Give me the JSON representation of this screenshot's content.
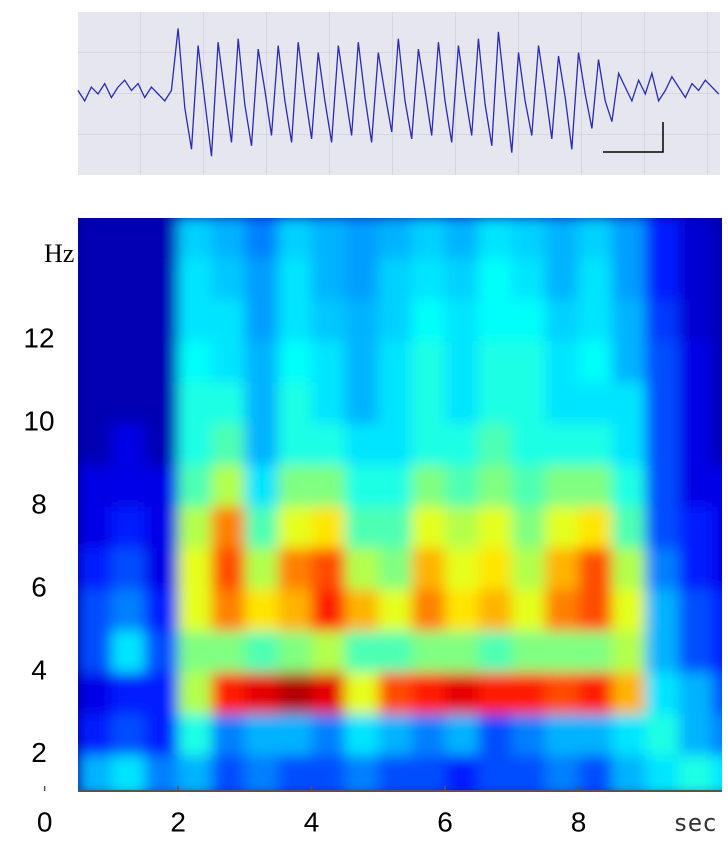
{
  "chart_data": [
    {
      "type": "line",
      "color": "#2a2ab8",
      "xlim": [
        0.5,
        10.15
      ],
      "ylim": [
        -1.1,
        1.1
      ],
      "x": [
        0.5,
        0.6,
        0.7,
        0.8,
        0.9,
        1.0,
        1.1,
        1.2,
        1.3,
        1.4,
        1.5,
        1.6,
        1.7,
        1.8,
        1.9,
        2.0,
        2.1,
        2.2,
        2.3,
        2.4,
        2.5,
        2.6,
        2.7,
        2.8,
        2.9,
        3.0,
        3.1,
        3.2,
        3.3,
        3.4,
        3.5,
        3.6,
        3.7,
        3.8,
        3.9,
        4.0,
        4.1,
        4.2,
        4.3,
        4.4,
        4.5,
        4.6,
        4.7,
        4.8,
        4.9,
        5.0,
        5.1,
        5.2,
        5.3,
        5.4,
        5.5,
        5.6,
        5.7,
        5.8,
        5.9,
        6.0,
        6.1,
        6.2,
        6.3,
        6.4,
        6.5,
        6.6,
        6.7,
        6.8,
        6.9,
        7.0,
        7.1,
        7.2,
        7.3,
        7.4,
        7.5,
        7.6,
        7.7,
        7.8,
        7.9,
        8.0,
        8.1,
        8.2,
        8.3,
        8.4,
        8.5,
        8.6,
        8.7,
        8.8,
        8.9,
        9.0,
        9.1,
        9.2,
        9.3,
        9.4,
        9.5,
        9.6,
        9.7,
        9.8,
        9.9,
        10.0,
        10.1
      ],
      "values": [
        0.05,
        -0.1,
        0.1,
        0.0,
        0.15,
        -0.05,
        0.1,
        0.2,
        0.05,
        0.15,
        -0.05,
        0.1,
        0.0,
        -0.1,
        0.05,
        0.95,
        -0.2,
        -0.8,
        0.7,
        -0.1,
        -0.9,
        0.75,
        0.0,
        -0.7,
        0.8,
        -0.15,
        -0.75,
        0.65,
        0.05,
        -0.6,
        0.7,
        -0.1,
        -0.7,
        0.75,
        0.0,
        -0.65,
        0.6,
        -0.1,
        -0.7,
        0.7,
        0.05,
        -0.6,
        0.75,
        -0.05,
        -0.7,
        0.6,
        0.0,
        -0.55,
        0.8,
        -0.1,
        -0.65,
        0.65,
        0.05,
        -0.6,
        0.75,
        -0.1,
        -0.7,
        0.7,
        0.0,
        -0.6,
        0.8,
        -0.15,
        -0.75,
        0.9,
        0.0,
        -0.85,
        0.6,
        -0.1,
        -0.6,
        0.7,
        0.05,
        -0.65,
        0.55,
        -0.05,
        -0.8,
        0.6,
        0.0,
        -0.5,
        0.5,
        -0.1,
        -0.4,
        0.3,
        0.1,
        -0.1,
        0.2,
        0.0,
        0.3,
        -0.1,
        0.05,
        0.25,
        0.1,
        -0.05,
        0.15,
        0.05,
        0.2,
        0.1,
        0.0
      ]
    },
    {
      "type": "heatmap",
      "xlabel": "sec",
      "ylabel": "Hz",
      "xlim": [
        0.5,
        10.15
      ],
      "ylim": [
        1.15,
        14.95
      ],
      "xticks": [
        0,
        2,
        4,
        6,
        8
      ],
      "yticks": [
        2,
        4,
        6,
        8,
        10,
        12
      ],
      "x": [
        0.5,
        1.0,
        1.5,
        2.0,
        2.5,
        3.0,
        3.5,
        4.0,
        4.5,
        5.0,
        5.5,
        6.0,
        6.5,
        7.0,
        7.5,
        8.0,
        8.5,
        9.0,
        9.5,
        10.0,
        10.5
      ],
      "y": [
        1,
        2,
        3,
        4,
        5,
        6,
        7,
        8,
        9,
        10,
        11,
        12,
        13,
        14,
        15
      ],
      "z": [
        [
          0.3,
          0.35,
          0.25,
          0.3,
          0.2,
          0.25,
          0.2,
          0.2,
          0.25,
          0.2,
          0.2,
          0.15,
          0.2,
          0.2,
          0.25,
          0.2,
          0.3,
          0.35,
          0.4,
          0.35
        ],
        [
          0.15,
          0.2,
          0.15,
          0.4,
          0.25,
          0.3,
          0.3,
          0.25,
          0.35,
          0.3,
          0.25,
          0.3,
          0.2,
          0.25,
          0.3,
          0.3,
          0.35,
          0.4,
          0.3,
          0.25
        ],
        [
          0.1,
          0.15,
          0.15,
          0.55,
          0.85,
          0.9,
          0.95,
          0.9,
          0.6,
          0.8,
          0.85,
          0.9,
          0.85,
          0.85,
          0.8,
          0.85,
          0.7,
          0.35,
          0.3,
          0.2
        ],
        [
          0.2,
          0.35,
          0.2,
          0.5,
          0.5,
          0.45,
          0.5,
          0.55,
          0.45,
          0.45,
          0.5,
          0.5,
          0.45,
          0.5,
          0.5,
          0.5,
          0.55,
          0.3,
          0.2,
          0.15
        ],
        [
          0.2,
          0.25,
          0.15,
          0.6,
          0.75,
          0.65,
          0.7,
          0.85,
          0.7,
          0.6,
          0.75,
          0.65,
          0.7,
          0.6,
          0.75,
          0.8,
          0.6,
          0.3,
          0.2,
          0.15
        ],
        [
          0.15,
          0.2,
          0.1,
          0.6,
          0.8,
          0.55,
          0.75,
          0.8,
          0.55,
          0.5,
          0.7,
          0.6,
          0.65,
          0.55,
          0.7,
          0.8,
          0.55,
          0.25,
          0.15,
          0.1
        ],
        [
          0.1,
          0.15,
          0.1,
          0.55,
          0.75,
          0.45,
          0.6,
          0.65,
          0.45,
          0.45,
          0.6,
          0.55,
          0.6,
          0.5,
          0.6,
          0.65,
          0.45,
          0.2,
          0.15,
          0.1
        ],
        [
          0.1,
          0.1,
          0.1,
          0.45,
          0.55,
          0.35,
          0.5,
          0.5,
          0.4,
          0.4,
          0.5,
          0.45,
          0.5,
          0.45,
          0.5,
          0.5,
          0.4,
          0.2,
          0.1,
          0.1
        ],
        [
          0.05,
          0.1,
          0.05,
          0.4,
          0.45,
          0.3,
          0.4,
          0.4,
          0.35,
          0.35,
          0.4,
          0.4,
          0.45,
          0.4,
          0.4,
          0.4,
          0.35,
          0.2,
          0.1,
          0.05
        ],
        [
          0.05,
          0.05,
          0.05,
          0.4,
          0.4,
          0.3,
          0.4,
          0.35,
          0.3,
          0.35,
          0.4,
          0.35,
          0.4,
          0.4,
          0.35,
          0.35,
          0.35,
          0.2,
          0.1,
          0.05
        ],
        [
          0.05,
          0.05,
          0.05,
          0.38,
          0.35,
          0.3,
          0.38,
          0.35,
          0.3,
          0.35,
          0.4,
          0.35,
          0.4,
          0.4,
          0.35,
          0.38,
          0.3,
          0.2,
          0.1,
          0.05
        ],
        [
          0.05,
          0.05,
          0.05,
          0.35,
          0.35,
          0.28,
          0.35,
          0.32,
          0.3,
          0.33,
          0.38,
          0.35,
          0.38,
          0.38,
          0.33,
          0.35,
          0.3,
          0.18,
          0.08,
          0.05
        ],
        [
          0.05,
          0.05,
          0.05,
          0.35,
          0.32,
          0.28,
          0.35,
          0.3,
          0.28,
          0.33,
          0.35,
          0.33,
          0.38,
          0.35,
          0.3,
          0.35,
          0.28,
          0.15,
          0.08,
          0.05
        ],
        [
          0.05,
          0.05,
          0.05,
          0.33,
          0.3,
          0.25,
          0.33,
          0.3,
          0.28,
          0.3,
          0.33,
          0.3,
          0.35,
          0.33,
          0.3,
          0.33,
          0.28,
          0.15,
          0.08,
          0.05
        ]
      ]
    }
  ]
}
